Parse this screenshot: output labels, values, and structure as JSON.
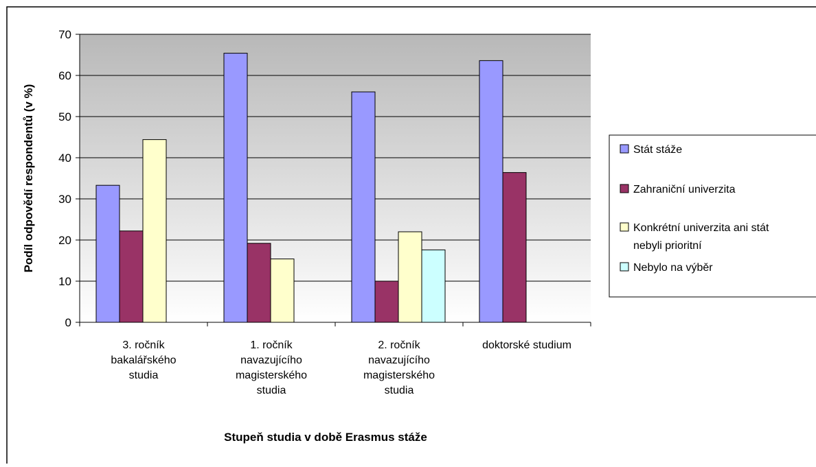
{
  "chart_data": {
    "type": "bar",
    "xlabel": "Stupeň studia v době Erasmus stáže",
    "ylabel": "Podíl odpovědí respondentů (v %)",
    "ylim": [
      0,
      70
    ],
    "yticks": [
      0,
      10,
      20,
      30,
      40,
      50,
      60,
      70
    ],
    "grid": true,
    "legend_position": "right",
    "categories": [
      [
        "3. ročník",
        "bakalářského",
        "studia"
      ],
      [
        "1. ročník",
        "navazujícího",
        "magisterského",
        "studia"
      ],
      [
        "2. ročník",
        "navazujícího",
        "magisterského",
        "studia"
      ],
      [
        "doktorské studium"
      ]
    ],
    "series": [
      {
        "name": "Stát stáže",
        "color": "#9999FF",
        "values": [
          33.3,
          65.4,
          56.0,
          63.6
        ]
      },
      {
        "name": "Zahraniční univerzita",
        "color": "#993366",
        "values": [
          22.2,
          19.2,
          10.0,
          36.4
        ]
      },
      {
        "name": "Konkrétní univerzita ani stát nebyli prioritní",
        "legend_lines": [
          "Konkrétní univerzita ani stát",
          "nebyli prioritní"
        ],
        "color": "#FFFFCC",
        "values": [
          44.4,
          15.4,
          22.0,
          null
        ]
      },
      {
        "name": "Nebylo na výběr",
        "color": "#CCFFFF",
        "values": [
          null,
          null,
          17.6,
          null
        ]
      }
    ]
  }
}
